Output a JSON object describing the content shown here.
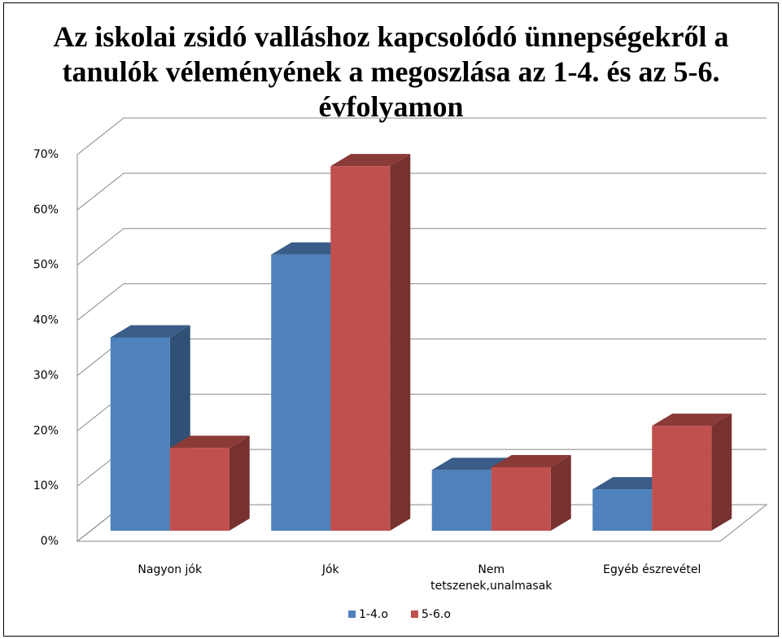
{
  "chart_data": {
    "type": "bar3d",
    "title": "Az iskolai zsidó valláshoz kapcsolódó ünnepségekről a tanulók véleményének a megoszlása az 1-4. és az 5-6. évfolyamon",
    "categories": [
      "Nagyon jók",
      "Jók",
      "Nem tetszenek,unalmasak",
      "Egyéb észrevétel"
    ],
    "series": [
      {
        "name": "1-4.o",
        "color": "#4f81bd",
        "values": [
          35,
          50,
          11,
          7.5
        ]
      },
      {
        "name": "5-6.o",
        "color": "#c0504d",
        "values": [
          15,
          66,
          11.5,
          19
        ]
      }
    ],
    "ylim": [
      0,
      70
    ],
    "yticks": [
      {
        "value": 0,
        "label": "0%"
      },
      {
        "value": 10,
        "label": "10%"
      },
      {
        "value": 20,
        "label": "20%"
      },
      {
        "value": 30,
        "label": "30%"
      },
      {
        "value": 40,
        "label": "40%"
      },
      {
        "value": 50,
        "label": "50%"
      },
      {
        "value": 60,
        "label": "60%"
      },
      {
        "value": 70,
        "label": "70%"
      }
    ],
    "grid": true,
    "legend": "bottom"
  }
}
